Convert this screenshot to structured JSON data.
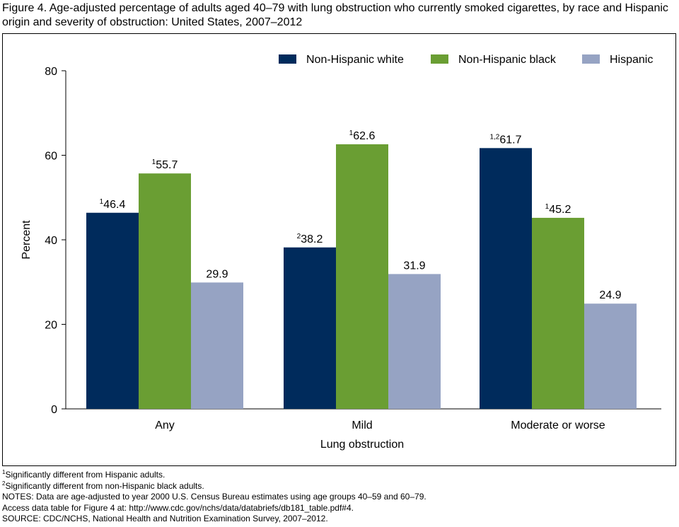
{
  "title": "Figure 4. Age-adjusted percentage of adults aged 40–79 with lung obstruction who currently smoked cigarettes, by race and Hispanic origin and severity of obstruction: United States, 2007–2012",
  "chart_data": {
    "type": "bar",
    "xlabel": "Lung obstruction",
    "ylabel": "Percent",
    "ylim": [
      0,
      80
    ],
    "yticks": [
      0,
      20,
      40,
      60,
      80
    ],
    "grid": false,
    "legend_position": "top-right",
    "categories": [
      "Any",
      "Mild",
      "Moderate or worse"
    ],
    "series": [
      {
        "name": "Non-Hispanic white",
        "color": "#002b5c",
        "values": [
          46.4,
          38.2,
          61.7
        ],
        "markers": [
          "1",
          "2",
          "1,2"
        ]
      },
      {
        "name": "Non-Hispanic black",
        "color": "#6a9e33",
        "values": [
          55.7,
          62.6,
          45.2
        ],
        "markers": [
          "1",
          "1",
          "1"
        ]
      },
      {
        "name": "Hispanic",
        "color": "#96a3c3",
        "values": [
          29.9,
          31.9,
          24.9
        ],
        "markers": [
          "",
          "",
          ""
        ]
      }
    ]
  },
  "notes": {
    "footnote1_mark": "1",
    "footnote1": "Significantly different from Hispanic adults.",
    "footnote2_mark": "2",
    "footnote2": "Significantly different from non-Hispanic black adults.",
    "notes": "NOTES: Data are age-adjusted to year 2000 U.S. Census Bureau estimates using age groups 40–59 and 60–79.",
    "access": "Access data table for Figure 4 at: http://www.cdc.gov/nchs/data/databriefs/db181_table.pdf#4.",
    "source": "SOURCE: CDC/NCHS, National Health and Nutrition Examination Survey, 2007–2012."
  }
}
